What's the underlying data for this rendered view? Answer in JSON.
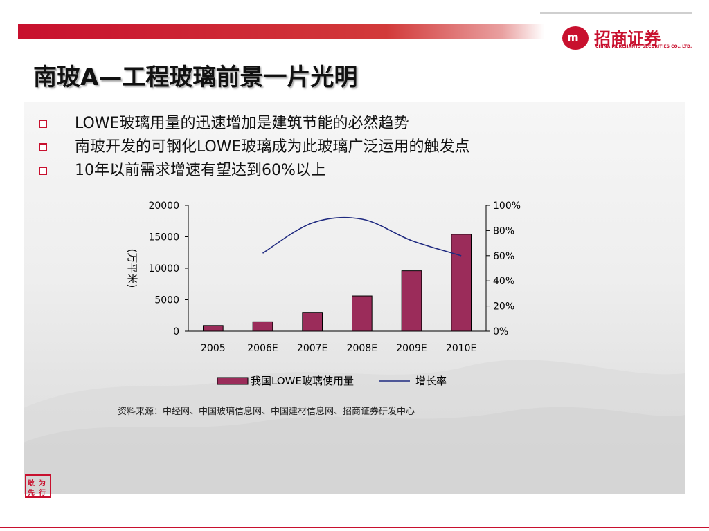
{
  "header": {
    "logo_cn": "招商证券",
    "logo_en": "CHINA MERCHANTS SECURITIES CO., LTD.",
    "logo_mark": "m"
  },
  "title": "南玻A—工程玻璃前景一片光明",
  "bullets": [
    "LOWE玻璃用量的迅速增加是建筑节能的必然趋势",
    "南玻开发的可钢化LOWE玻璃成为此玻璃广泛运用的触发点",
    "10年以前需求增速有望达到60%以上"
  ],
  "source": "资料来源：中经网、中国玻璃信息网、中国建材信息网、招商证券研发中心",
  "stamp_chars": [
    "敢",
    "为",
    "行",
    "先"
  ],
  "colors": {
    "brand_red": "#c8102e",
    "bar": "#9b2c5a",
    "line": "#1f2a80"
  },
  "chart_data": {
    "type": "bar",
    "categories": [
      "2005",
      "2006E",
      "2007E",
      "2008E",
      "2009E",
      "2010E"
    ],
    "series": [
      {
        "name": "我国LOWE玻璃使用量",
        "type": "bar",
        "axis": "left",
        "values": [
          900,
          1500,
          3000,
          5600,
          9600,
          15400
        ]
      },
      {
        "name": "增长率",
        "type": "line",
        "axis": "right",
        "values": [
          null,
          0.62,
          0.86,
          0.89,
          0.72,
          0.6
        ]
      }
    ],
    "ylabel": "(万平米)",
    "ylim": [
      0,
      20000
    ],
    "yticks": [
      "20000",
      "15000",
      "10000",
      "5000",
      "0"
    ],
    "y2lim": [
      0,
      1
    ],
    "y2ticks": [
      "100%",
      "80%",
      "60%",
      "40%",
      "20%",
      "0%"
    ],
    "legend_position": "bottom"
  }
}
